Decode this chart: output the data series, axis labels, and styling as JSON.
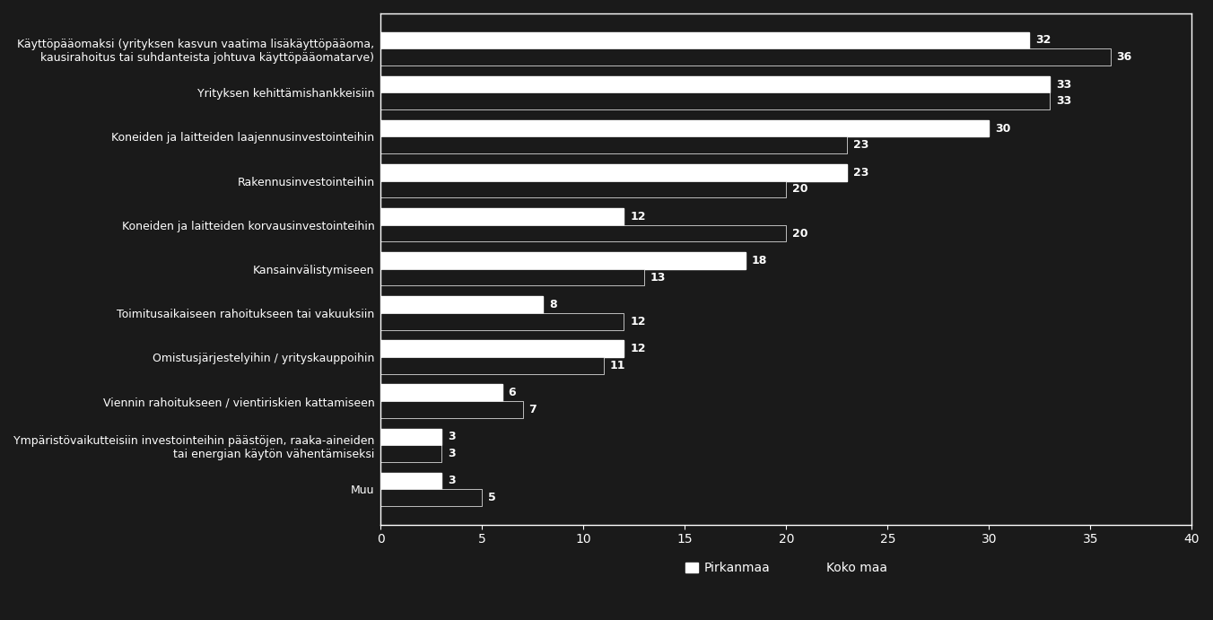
{
  "categories": [
    "Käyttöpääomaksi (yrityksen kasvun vaatima lisäkäyttöpääoma,\nkausirahoitus tai suhdanteista johtuva käyttöpääomatarve)",
    "Yrityksen kehittämishankkeisiin",
    "Koneiden ja laitteiden laajennusinvestointeihin",
    "Rakennusinvestointeihin",
    "Koneiden ja laitteiden korvausinvestointeihin",
    "Kansainvälistymiseen",
    "Toimitusaikaiseen rahoitukseen tai vakuuksiin",
    "Omistusjärjestelyihin / yrityskauppoihin",
    "Viennin rahoitukseen / vientiriskien kattamiseen",
    "Ympäristövaikutteisiin investointeihin päästöjen, raaka-aineiden\ntai energian käytön vähentämiseksi",
    "Muu"
  ],
  "pirkanmaa": [
    32,
    33,
    30,
    23,
    12,
    18,
    8,
    12,
    6,
    3,
    3
  ],
  "koko_maa": [
    36,
    33,
    23,
    20,
    20,
    13,
    12,
    11,
    7,
    3,
    5
  ],
  "pirkanmaa_color": "#ffffff",
  "koko_maa_color": "#1a1a1a",
  "koko_maa_edge": "#ffffff",
  "background_color": "#1a1a1a",
  "plot_background": "#1a1a1a",
  "text_color": "#ffffff",
  "xlim": [
    0,
    40
  ],
  "xticks": [
    0,
    5,
    10,
    15,
    20,
    25,
    30,
    35,
    40
  ],
  "legend_pirkanmaa": "Pirkanmaa",
  "legend_koko_maa": "Koko maa",
  "label_fontsize": 9,
  "tick_fontsize": 10,
  "legend_fontsize": 10,
  "value_fontsize": 9,
  "bar_height": 0.38,
  "plot_border_color": "#ffffff"
}
